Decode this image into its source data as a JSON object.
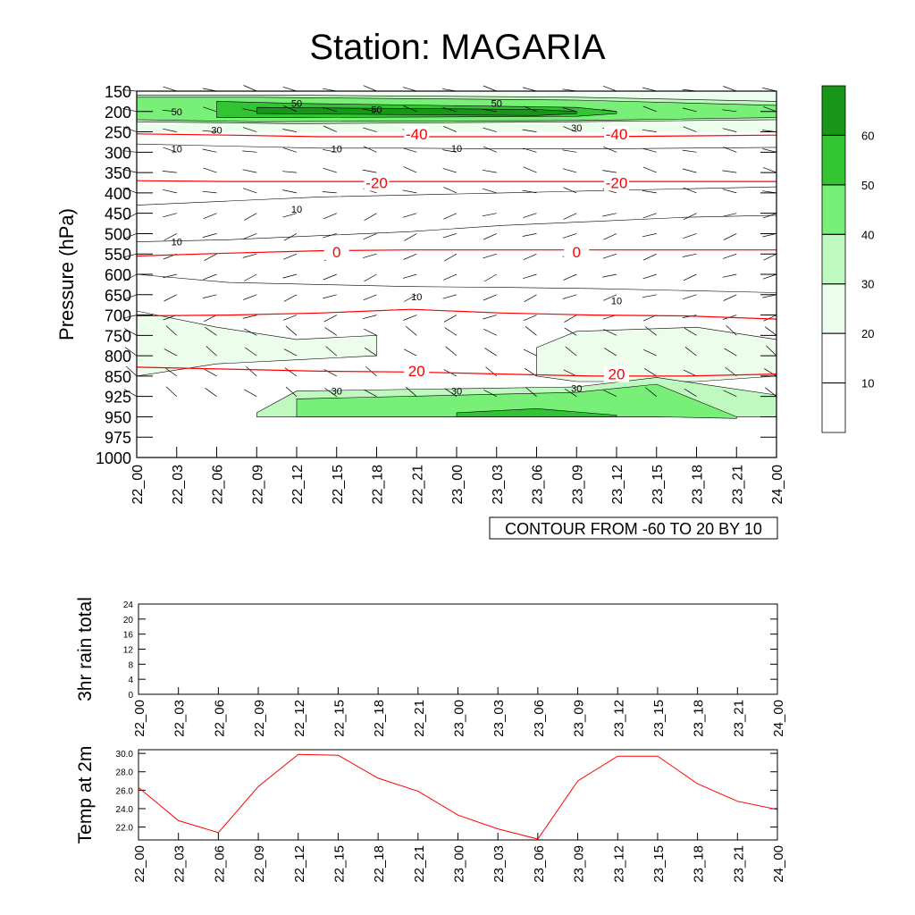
{
  "title": "Station: MAGARIA",
  "time_labels": [
    "22_00",
    "22_03",
    "22_06",
    "22_09",
    "22_12",
    "22_15",
    "22_18",
    "22_21",
    "23_00",
    "23_03",
    "23_06",
    "23_09",
    "23_12",
    "23_15",
    "23_18",
    "23_21",
    "24_00"
  ],
  "colors": {
    "shade": [
      "#ffffff",
      "#ffffff",
      "#ecfdec",
      "#c0f9c0",
      "#78f078",
      "#32c432",
      "#189618"
    ],
    "contour": "#000000",
    "temperature_contour": "#ff0000",
    "barb": "#000000",
    "temp_line": "#ff0000"
  },
  "chart_data": [
    {
      "name": "cross-section",
      "type": "heatmap",
      "ylabel": "Pressure (hPa)",
      "y_ticks": [
        150,
        200,
        250,
        300,
        350,
        400,
        450,
        500,
        550,
        600,
        650,
        700,
        750,
        800,
        850,
        925,
        950,
        975,
        1000
      ],
      "ylim": [
        1000,
        150
      ],
      "info_label": "CONTOUR FROM -60 TO 20 BY 10",
      "wind_speed_colorbar": {
        "levels": [
          10,
          20,
          30,
          40,
          50,
          60
        ],
        "labels": [
          "10",
          "",
          "",
          "40",
          "50",
          "60"
        ],
        "label_visible": [
          10,
          20,
          30,
          40,
          50,
          60
        ]
      },
      "wind_speed_contour_labels": [
        "10",
        "30",
        "50"
      ],
      "wind_speed_max_band": [
        {
          "time": "22_00",
          "p_top": 160,
          "p_bot": 225
        },
        {
          "time": "22_12",
          "p_top": 160,
          "p_bot": 230
        },
        {
          "time": "23_09",
          "p_top": 165,
          "p_bot": 225
        },
        {
          "time": "24_00",
          "p_top": 175,
          "p_bot": 220
        }
      ],
      "low_level_jet": [
        {
          "time": "22_09",
          "p_top": 945,
          "p_bot": 950
        },
        {
          "time": "22_12",
          "p_top": 905,
          "p_bot": 950
        },
        {
          "time": "23_09",
          "p_top": 890,
          "p_bot": 950
        },
        {
          "time": "23_15",
          "p_top": 855,
          "p_bot": 950
        },
        {
          "time": "24_00",
          "p_top": 920,
          "p_bot": 950
        }
      ],
      "temperature_contours": [
        {
          "level": -40,
          "label": "-40",
          "pressure": [
            255,
            258,
            262,
            262,
            262,
            262,
            260,
            258
          ]
        },
        {
          "level": -20,
          "label": "-20",
          "pressure": [
            370,
            372,
            372,
            372,
            372,
            372,
            372,
            372
          ]
        },
        {
          "level": 0,
          "label": "0",
          "pressure": [
            555,
            548,
            542,
            540,
            540,
            540,
            540,
            540
          ]
        },
        {
          "level": 10,
          "label": "",
          "pressure": [
            702,
            700,
            695,
            686,
            695,
            700,
            702,
            710
          ]
        },
        {
          "level": 20,
          "label": "20",
          "pressure": [
            828,
            833,
            838,
            840,
            845,
            850,
            850,
            845
          ]
        }
      ],
      "temperature_label_positions": [
        {
          "label": "-40",
          "time": "22_21",
          "pressure": 255
        },
        {
          "label": "-40",
          "time": "23_12",
          "pressure": 255
        },
        {
          "label": "-20",
          "time": "22_18",
          "pressure": 375
        },
        {
          "label": "-20",
          "time": "23_12",
          "pressure": 375
        },
        {
          "label": "0",
          "time": "22_15",
          "pressure": 545
        },
        {
          "label": "0",
          "time": "23_09",
          "pressure": 545
        },
        {
          "label": "20",
          "time": "22_21",
          "pressure": 837
        },
        {
          "label": "20",
          "time": "23_12",
          "pressure": 845
        }
      ]
    },
    {
      "name": "rain",
      "type": "line",
      "ylabel": "3hr rain total",
      "ylim": [
        0,
        24
      ],
      "y_ticks": [
        0,
        4,
        8,
        12,
        16,
        20,
        24
      ],
      "y_tick_labels": [
        "0",
        "4",
        "8",
        "12",
        "16",
        "20",
        "24"
      ],
      "x": [
        "22_00",
        "22_03",
        "22_06",
        "22_09",
        "22_12",
        "22_15",
        "22_18",
        "22_21",
        "23_00",
        "23_03",
        "23_06",
        "23_09",
        "23_12",
        "23_15",
        "23_18",
        "23_21",
        "24_00"
      ],
      "values": [
        0,
        0,
        0,
        0,
        0,
        0,
        0,
        0,
        0,
        0,
        0,
        0,
        0,
        0,
        0,
        0,
        0
      ]
    },
    {
      "name": "temperature",
      "type": "line",
      "ylabel": "Temp at 2m",
      "ylim": [
        20.6,
        30.4
      ],
      "y_ticks": [
        22.0,
        24.0,
        26.0,
        28.0,
        30.0
      ],
      "y_tick_labels": [
        "22.0",
        "24.0",
        "26.0",
        "28.0",
        "30.0"
      ],
      "x": [
        "22_00",
        "22_03",
        "22_06",
        "22_09",
        "22_12",
        "22_15",
        "22_18",
        "22_21",
        "23_00",
        "23_03",
        "23_06",
        "23_09",
        "23_12",
        "23_15",
        "23_18",
        "23_21",
        "24_00"
      ],
      "values": [
        26.3,
        22.7,
        21.4,
        26.4,
        29.9,
        29.8,
        27.3,
        25.9,
        23.3,
        21.8,
        20.7,
        27.0,
        29.7,
        29.7,
        26.7,
        24.8,
        23.9
      ]
    }
  ]
}
